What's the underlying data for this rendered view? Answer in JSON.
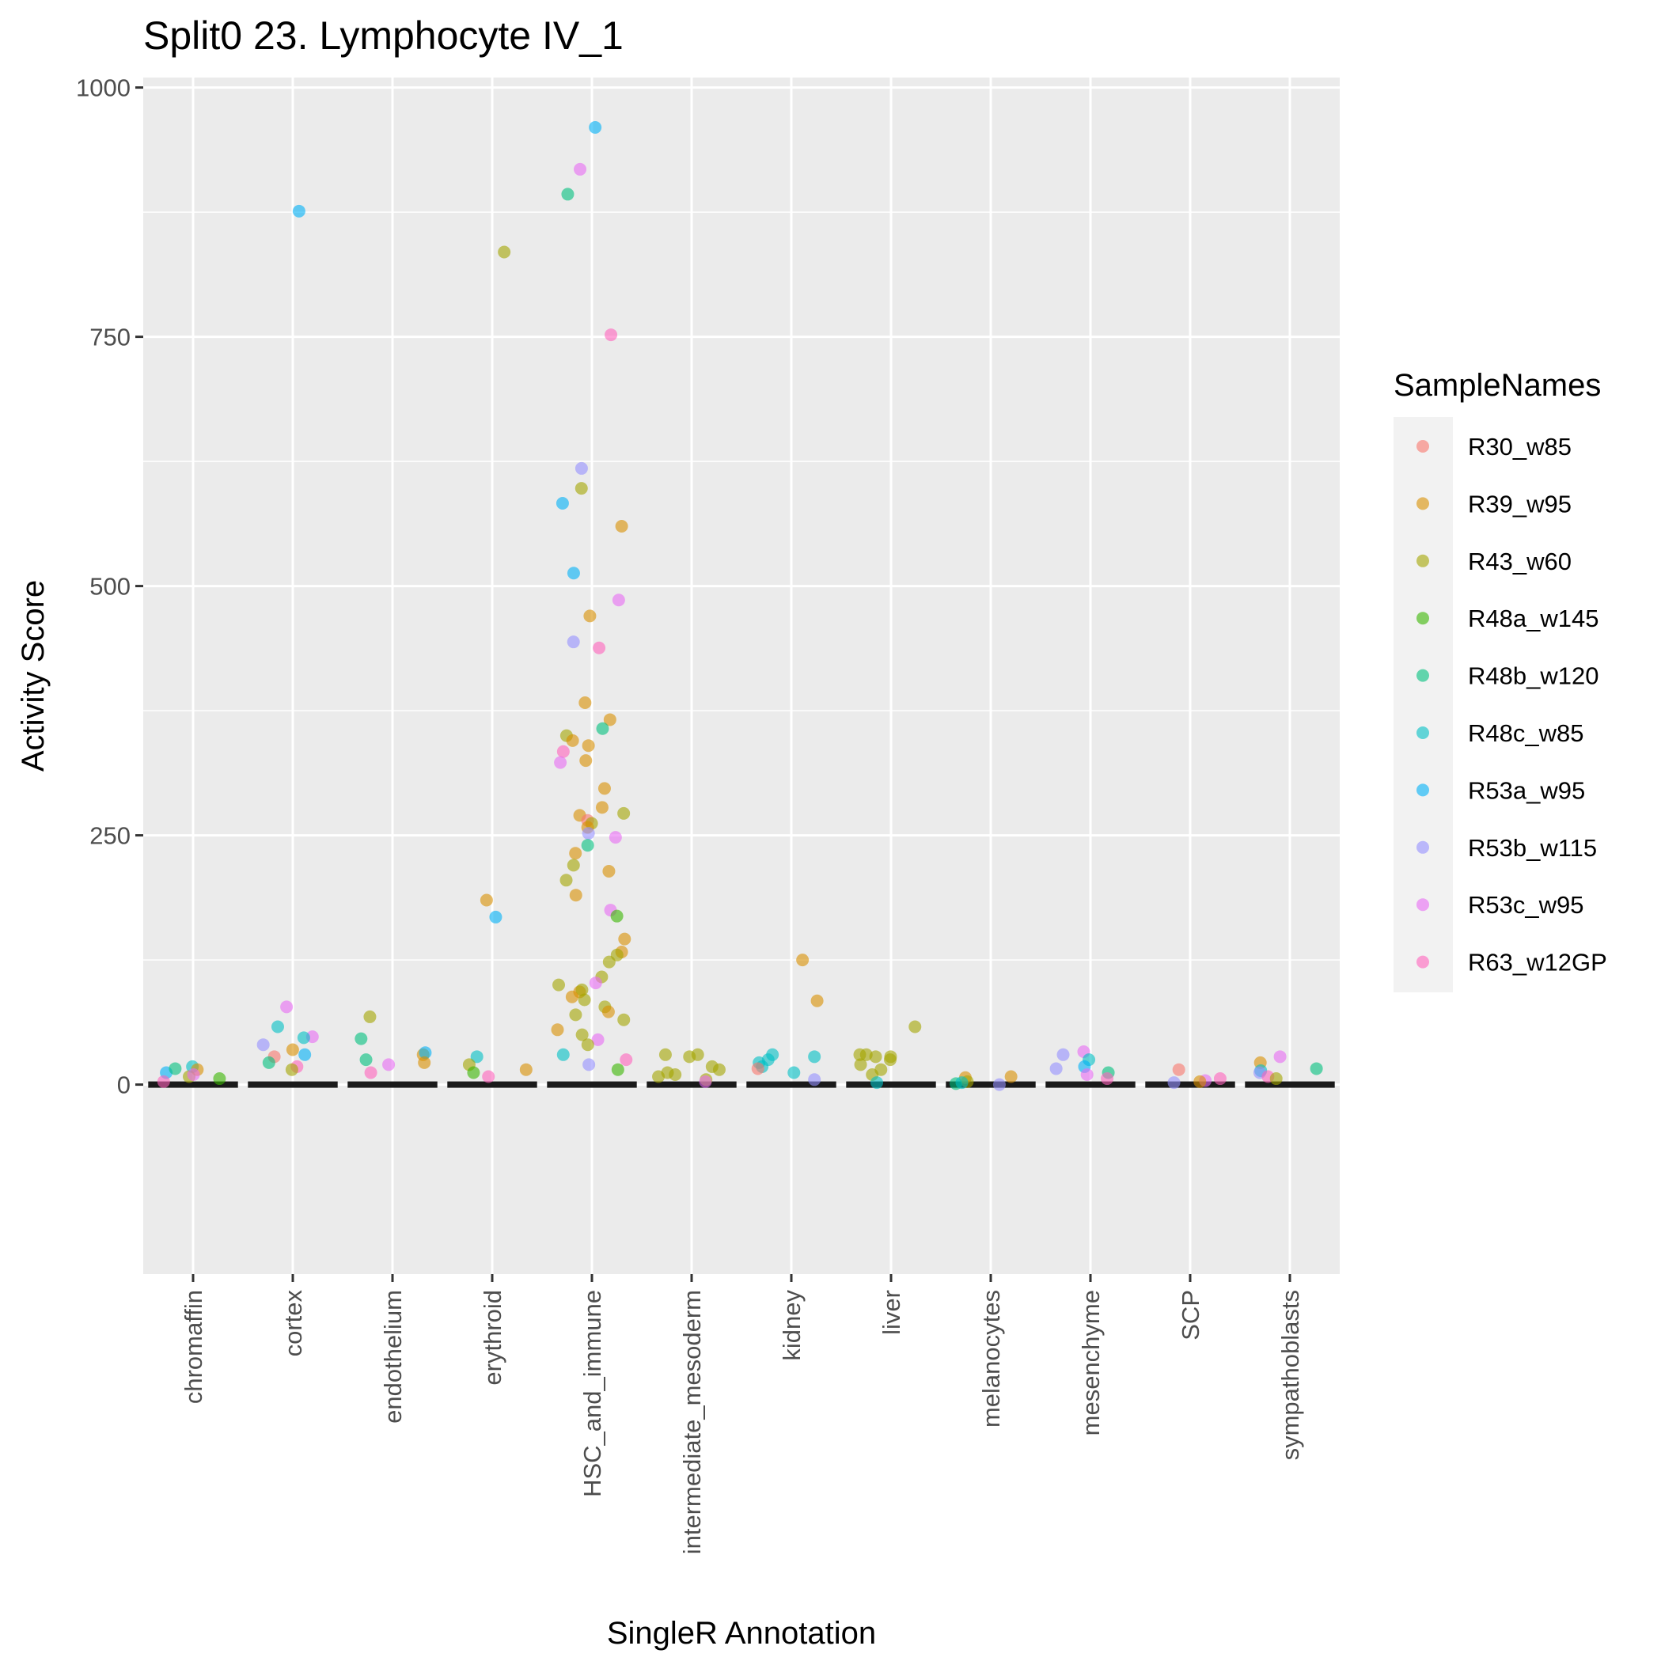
{
  "chart_data": {
    "type": "scatter",
    "subtype": "jitter-violin",
    "title": "Split0 23. Lymphocyte IV_1",
    "xlabel": "SingleR Annotation",
    "ylabel": "Activity Score",
    "ylim": [
      -190,
      1010
    ],
    "y_ticks": [
      0,
      250,
      500,
      750,
      1000
    ],
    "y_tick_labels": [
      "0",
      "250",
      "500",
      "750",
      "1000"
    ],
    "grid": true,
    "categories": [
      "chromaffin",
      "cortex",
      "endothelium",
      "erythroid",
      "HSC_and_immune",
      "intermediate_mesoderm",
      "kidney",
      "liver",
      "melanocytes",
      "mesenchyme",
      "SCP",
      "sympathoblasts"
    ],
    "legend": {
      "title": "SampleNames",
      "position": "right",
      "entries": [
        "R30_w85",
        "R39_w95",
        "R43_w60",
        "R48a_w145",
        "R48b_w120",
        "R48c_w85",
        "R53a_w95",
        "R53b_w115",
        "R53c_w95",
        "R63_w12GP"
      ],
      "colors": [
        "#F8766D",
        "#D89000",
        "#A3A500",
        "#39B600",
        "#00BF7D",
        "#00BFC4",
        "#00B0F6",
        "#9590FF",
        "#E76BF3",
        "#FF62BC"
      ]
    },
    "points": [
      {
        "cat": "chromaffin",
        "sample": "R48c_w85",
        "y": 18
      },
      {
        "cat": "chromaffin",
        "sample": "R39_w95",
        "y": 15
      },
      {
        "cat": "chromaffin",
        "sample": "R53a_w95",
        "y": 12
      },
      {
        "cat": "chromaffin",
        "sample": "R48b_w120",
        "y": 16
      },
      {
        "cat": "chromaffin",
        "sample": "R43_w60",
        "y": 8
      },
      {
        "cat": "chromaffin",
        "sample": "R53c_w95",
        "y": 10
      },
      {
        "cat": "chromaffin",
        "sample": "R63_w12GP",
        "y": 3
      },
      {
        "cat": "chromaffin",
        "sample": "R48a_w145",
        "y": 6
      },
      {
        "cat": "cortex",
        "sample": "R53a_w95",
        "y": 876
      },
      {
        "cat": "cortex",
        "sample": "R53c_w95",
        "y": 78
      },
      {
        "cat": "cortex",
        "sample": "R48c_w85",
        "y": 58
      },
      {
        "cat": "cortex",
        "sample": "R53c_w95",
        "y": 48
      },
      {
        "cat": "cortex",
        "sample": "R48c_w85",
        "y": 47
      },
      {
        "cat": "cortex",
        "sample": "R53b_w115",
        "y": 40
      },
      {
        "cat": "cortex",
        "sample": "R39_w95",
        "y": 35
      },
      {
        "cat": "cortex",
        "sample": "R30_w85",
        "y": 28
      },
      {
        "cat": "cortex",
        "sample": "R53a_w95",
        "y": 30
      },
      {
        "cat": "cortex",
        "sample": "R48b_w120",
        "y": 22
      },
      {
        "cat": "cortex",
        "sample": "R63_w12GP",
        "y": 18
      },
      {
        "cat": "cortex",
        "sample": "R43_w60",
        "y": 15
      },
      {
        "cat": "endothelium",
        "sample": "R43_w60",
        "y": 68
      },
      {
        "cat": "endothelium",
        "sample": "R48b_w120",
        "y": 46
      },
      {
        "cat": "endothelium",
        "sample": "R39_w95",
        "y": 30
      },
      {
        "cat": "endothelium",
        "sample": "R53a_w95",
        "y": 32
      },
      {
        "cat": "endothelium",
        "sample": "R48b_w120",
        "y": 25
      },
      {
        "cat": "endothelium",
        "sample": "R53c_w95",
        "y": 20
      },
      {
        "cat": "endothelium",
        "sample": "R39_w95",
        "y": 22
      },
      {
        "cat": "endothelium",
        "sample": "R63_w12GP",
        "y": 12
      },
      {
        "cat": "erythroid",
        "sample": "R39_w95",
        "y": 185
      },
      {
        "cat": "erythroid",
        "sample": "R53a_w95",
        "y": 168
      },
      {
        "cat": "erythroid",
        "sample": "R43_w60",
        "y": 835
      },
      {
        "cat": "erythroid",
        "sample": "R48c_w85",
        "y": 28
      },
      {
        "cat": "erythroid",
        "sample": "R43_w60",
        "y": 20
      },
      {
        "cat": "erythroid",
        "sample": "R39_w95",
        "y": 15
      },
      {
        "cat": "erythroid",
        "sample": "R63_w12GP",
        "y": 8
      },
      {
        "cat": "erythroid",
        "sample": "R48a_w145",
        "y": 12
      },
      {
        "cat": "HSC_and_immune",
        "sample": "R53a_w95",
        "y": 960
      },
      {
        "cat": "HSC_and_immune",
        "sample": "R53c_w95",
        "y": 918
      },
      {
        "cat": "HSC_and_immune",
        "sample": "R48b_w120",
        "y": 893
      },
      {
        "cat": "HSC_and_immune",
        "sample": "R63_w12GP",
        "y": 752
      },
      {
        "cat": "HSC_and_immune",
        "sample": "R53b_w115",
        "y": 618
      },
      {
        "cat": "HSC_and_immune",
        "sample": "R43_w60",
        "y": 598
      },
      {
        "cat": "HSC_and_immune",
        "sample": "R53a_w95",
        "y": 583
      },
      {
        "cat": "HSC_and_immune",
        "sample": "R39_w95",
        "y": 560
      },
      {
        "cat": "HSC_and_immune",
        "sample": "R53a_w95",
        "y": 513
      },
      {
        "cat": "HSC_and_immune",
        "sample": "R53c_w95",
        "y": 486
      },
      {
        "cat": "HSC_and_immune",
        "sample": "R39_w95",
        "y": 470
      },
      {
        "cat": "HSC_and_immune",
        "sample": "R53b_w115",
        "y": 444
      },
      {
        "cat": "HSC_and_immune",
        "sample": "R63_w12GP",
        "y": 438
      },
      {
        "cat": "HSC_and_immune",
        "sample": "R39_w95",
        "y": 383
      },
      {
        "cat": "HSC_and_immune",
        "sample": "R39_w95",
        "y": 366
      },
      {
        "cat": "HSC_and_immune",
        "sample": "R48b_w120",
        "y": 357
      },
      {
        "cat": "HSC_and_immune",
        "sample": "R43_w60",
        "y": 350
      },
      {
        "cat": "HSC_and_immune",
        "sample": "R39_w95",
        "y": 345
      },
      {
        "cat": "HSC_and_immune",
        "sample": "R39_w95",
        "y": 340
      },
      {
        "cat": "HSC_and_immune",
        "sample": "R63_w12GP",
        "y": 334
      },
      {
        "cat": "HSC_and_immune",
        "sample": "R53c_w95",
        "y": 323
      },
      {
        "cat": "HSC_and_immune",
        "sample": "R39_w95",
        "y": 325
      },
      {
        "cat": "HSC_and_immune",
        "sample": "R39_w95",
        "y": 297
      },
      {
        "cat": "HSC_and_immune",
        "sample": "R39_w95",
        "y": 278
      },
      {
        "cat": "HSC_and_immune",
        "sample": "R43_w60",
        "y": 272
      },
      {
        "cat": "HSC_and_immune",
        "sample": "R39_w95",
        "y": 270
      },
      {
        "cat": "HSC_and_immune",
        "sample": "R30_w85",
        "y": 265
      },
      {
        "cat": "HSC_and_immune",
        "sample": "R43_w60",
        "y": 262
      },
      {
        "cat": "HSC_and_immune",
        "sample": "R39_w95",
        "y": 258
      },
      {
        "cat": "HSC_and_immune",
        "sample": "R53c_w95",
        "y": 248
      },
      {
        "cat": "HSC_and_immune",
        "sample": "R53b_w115",
        "y": 252
      },
      {
        "cat": "HSC_and_immune",
        "sample": "R48b_w120",
        "y": 240
      },
      {
        "cat": "HSC_and_immune",
        "sample": "R39_w95",
        "y": 232
      },
      {
        "cat": "HSC_and_immune",
        "sample": "R43_w60",
        "y": 220
      },
      {
        "cat": "HSC_and_immune",
        "sample": "R39_w95",
        "y": 214
      },
      {
        "cat": "HSC_and_immune",
        "sample": "R43_w60",
        "y": 205
      },
      {
        "cat": "HSC_and_immune",
        "sample": "R39_w95",
        "y": 190
      },
      {
        "cat": "HSC_and_immune",
        "sample": "R53c_w95",
        "y": 175
      },
      {
        "cat": "HSC_and_immune",
        "sample": "R48a_w145",
        "y": 169
      },
      {
        "cat": "HSC_and_immune",
        "sample": "R39_w95",
        "y": 146
      },
      {
        "cat": "HSC_and_immune",
        "sample": "R39_w95",
        "y": 133
      },
      {
        "cat": "HSC_and_immune",
        "sample": "R43_w60",
        "y": 130
      },
      {
        "cat": "HSC_and_immune",
        "sample": "R43_w60",
        "y": 123
      },
      {
        "cat": "HSC_and_immune",
        "sample": "R43_w60",
        "y": 108
      },
      {
        "cat": "HSC_and_immune",
        "sample": "R53c_w95",
        "y": 102
      },
      {
        "cat": "HSC_and_immune",
        "sample": "R43_w60",
        "y": 100
      },
      {
        "cat": "HSC_and_immune",
        "sample": "R39_w95",
        "y": 93
      },
      {
        "cat": "HSC_and_immune",
        "sample": "R43_w60",
        "y": 95
      },
      {
        "cat": "HSC_and_immune",
        "sample": "R39_w95",
        "y": 88
      },
      {
        "cat": "HSC_and_immune",
        "sample": "R43_w60",
        "y": 85
      },
      {
        "cat": "HSC_and_immune",
        "sample": "R43_w60",
        "y": 78
      },
      {
        "cat": "HSC_and_immune",
        "sample": "R39_w95",
        "y": 73
      },
      {
        "cat": "HSC_and_immune",
        "sample": "R43_w60",
        "y": 70
      },
      {
        "cat": "HSC_and_immune",
        "sample": "R43_w60",
        "y": 65
      },
      {
        "cat": "HSC_and_immune",
        "sample": "R39_w95",
        "y": 55
      },
      {
        "cat": "HSC_and_immune",
        "sample": "R43_w60",
        "y": 50
      },
      {
        "cat": "HSC_and_immune",
        "sample": "R53c_w95",
        "y": 45
      },
      {
        "cat": "HSC_and_immune",
        "sample": "R43_w60",
        "y": 40
      },
      {
        "cat": "HSC_and_immune",
        "sample": "R48c_w85",
        "y": 30
      },
      {
        "cat": "HSC_and_immune",
        "sample": "R63_w12GP",
        "y": 25
      },
      {
        "cat": "HSC_and_immune",
        "sample": "R53b_w115",
        "y": 20
      },
      {
        "cat": "HSC_and_immune",
        "sample": "R48a_w145",
        "y": 15
      },
      {
        "cat": "intermediate_mesoderm",
        "sample": "R43_w60",
        "y": 30
      },
      {
        "cat": "intermediate_mesoderm",
        "sample": "R43_w60",
        "y": 28
      },
      {
        "cat": "intermediate_mesoderm",
        "sample": "R43_w60",
        "y": 30
      },
      {
        "cat": "intermediate_mesoderm",
        "sample": "R43_w60",
        "y": 18
      },
      {
        "cat": "intermediate_mesoderm",
        "sample": "R43_w60",
        "y": 15
      },
      {
        "cat": "intermediate_mesoderm",
        "sample": "R43_w60",
        "y": 10
      },
      {
        "cat": "intermediate_mesoderm",
        "sample": "R43_w60",
        "y": 8
      },
      {
        "cat": "intermediate_mesoderm",
        "sample": "R43_w60",
        "y": 12
      },
      {
        "cat": "intermediate_mesoderm",
        "sample": "R43_w60",
        "y": 5
      },
      {
        "cat": "intermediate_mesoderm",
        "sample": "R53c_w95",
        "y": 3
      },
      {
        "cat": "kidney",
        "sample": "R39_w95",
        "y": 125
      },
      {
        "cat": "kidney",
        "sample": "R39_w95",
        "y": 84
      },
      {
        "cat": "kidney",
        "sample": "R48c_w85",
        "y": 30
      },
      {
        "cat": "kidney",
        "sample": "R48c_w85",
        "y": 28
      },
      {
        "cat": "kidney",
        "sample": "R48c_w85",
        "y": 25
      },
      {
        "cat": "kidney",
        "sample": "R48c_w85",
        "y": 22
      },
      {
        "cat": "kidney",
        "sample": "R48c_w85",
        "y": 18
      },
      {
        "cat": "kidney",
        "sample": "R30_w85",
        "y": 16
      },
      {
        "cat": "kidney",
        "sample": "R48c_w85",
        "y": 12
      },
      {
        "cat": "kidney",
        "sample": "R53b_w115",
        "y": 5
      },
      {
        "cat": "liver",
        "sample": "R43_w60",
        "y": 58
      },
      {
        "cat": "liver",
        "sample": "R43_w60",
        "y": 30
      },
      {
        "cat": "liver",
        "sample": "R43_w60",
        "y": 28
      },
      {
        "cat": "liver",
        "sample": "R43_w60",
        "y": 30
      },
      {
        "cat": "liver",
        "sample": "R43_w60",
        "y": 28
      },
      {
        "cat": "liver",
        "sample": "R43_w60",
        "y": 25
      },
      {
        "cat": "liver",
        "sample": "R43_w60",
        "y": 20
      },
      {
        "cat": "liver",
        "sample": "R43_w60",
        "y": 15
      },
      {
        "cat": "liver",
        "sample": "R43_w60",
        "y": 10
      },
      {
        "cat": "liver",
        "sample": "R48c_w85",
        "y": 2
      },
      {
        "cat": "melanocytes",
        "sample": "R39_w95",
        "y": 8
      },
      {
        "cat": "melanocytes",
        "sample": "R39_w95",
        "y": 7
      },
      {
        "cat": "melanocytes",
        "sample": "R43_w60",
        "y": 3
      },
      {
        "cat": "melanocytes",
        "sample": "R48b_w120",
        "y": 1
      },
      {
        "cat": "melanocytes",
        "sample": "R53b_w115",
        "y": 0
      },
      {
        "cat": "melanocytes",
        "sample": "R48c_w85",
        "y": 2
      },
      {
        "cat": "mesenchyme",
        "sample": "R53c_w95",
        "y": 33
      },
      {
        "cat": "mesenchyme",
        "sample": "R53b_w115",
        "y": 30
      },
      {
        "cat": "mesenchyme",
        "sample": "R48c_w85",
        "y": 25
      },
      {
        "cat": "mesenchyme",
        "sample": "R53a_w95",
        "y": 18
      },
      {
        "cat": "mesenchyme",
        "sample": "R53b_w115",
        "y": 16
      },
      {
        "cat": "mesenchyme",
        "sample": "R48b_w120",
        "y": 12
      },
      {
        "cat": "mesenchyme",
        "sample": "R53c_w95",
        "y": 10
      },
      {
        "cat": "mesenchyme",
        "sample": "R63_w12GP",
        "y": 6
      },
      {
        "cat": "SCP",
        "sample": "R30_w85",
        "y": 15
      },
      {
        "cat": "SCP",
        "sample": "R63_w12GP",
        "y": 6
      },
      {
        "cat": "SCP",
        "sample": "R53c_w95",
        "y": 4
      },
      {
        "cat": "SCP",
        "sample": "R39_w95",
        "y": 3
      },
      {
        "cat": "SCP",
        "sample": "R53b_w115",
        "y": 2
      },
      {
        "cat": "sympathoblasts",
        "sample": "R53c_w95",
        "y": 28
      },
      {
        "cat": "sympathoblasts",
        "sample": "R39_w95",
        "y": 22
      },
      {
        "cat": "sympathoblasts",
        "sample": "R48b_w120",
        "y": 16
      },
      {
        "cat": "sympathoblasts",
        "sample": "R48c_w85",
        "y": 14
      },
      {
        "cat": "sympathoblasts",
        "sample": "R53b_w115",
        "y": 12
      },
      {
        "cat": "sympathoblasts",
        "sample": "R63_w12GP",
        "y": 8
      },
      {
        "cat": "sympathoblasts",
        "sample": "R43_w60",
        "y": 6
      }
    ]
  }
}
